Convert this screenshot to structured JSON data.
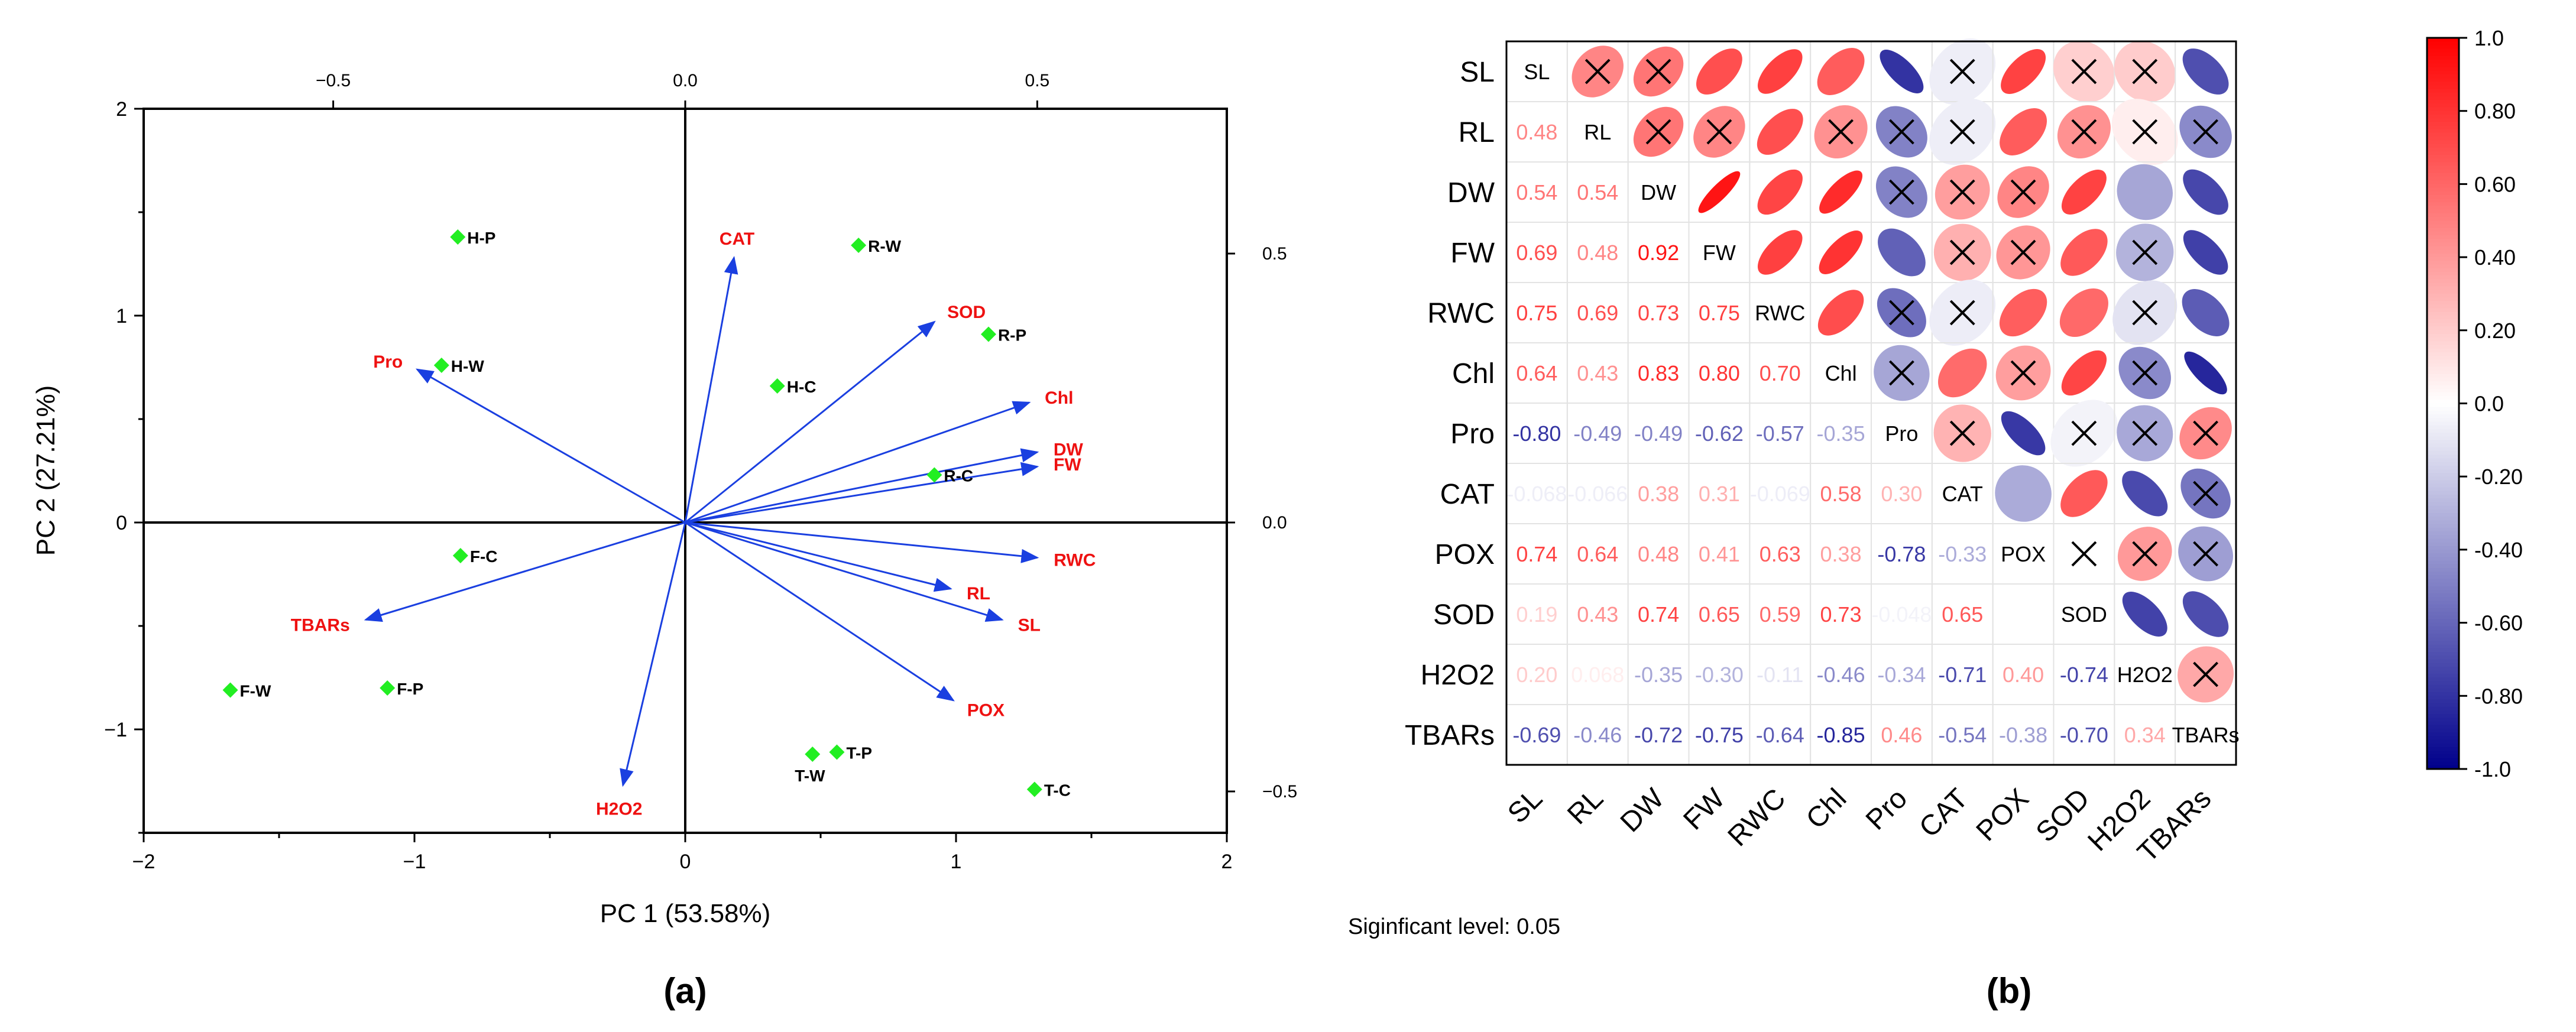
{
  "colors": {
    "arrow": "#1a3fe0",
    "score_marker": "#22ee22",
    "variable_label": "#ee1111",
    "positive": "#ff0000",
    "negative": "#00008b",
    "neutral": "#ffffff"
  },
  "chart_data": [
    {
      "panel": "(a)",
      "type": "scatter",
      "subtype": "pca-biplot",
      "title": "",
      "xlabel": "PC 1 (53.58%)",
      "ylabel": "PC 2 (27.21%)",
      "xlim": [
        -2,
        2
      ],
      "ylim": [
        -1.5,
        2
      ],
      "x_ticks": [
        -2,
        -1,
        0,
        1,
        2
      ],
      "y_ticks": [
        -1,
        0,
        1,
        2
      ],
      "tick_labels": {
        "bottom": [
          "−2",
          "−1",
          "0",
          "1",
          "2"
        ],
        "left": [
          "−1",
          "0",
          "1",
          "2"
        ],
        "top": [
          "−0.5",
          "0.0",
          "0.5"
        ],
        "right": [
          "−0.5",
          "0.0",
          "0.5"
        ]
      },
      "secondary_x_ticks": [
        -0.5,
        0.0,
        0.5
      ],
      "secondary_y_ticks": [
        -0.5,
        0.0,
        0.5
      ],
      "loading_scale": 2.6,
      "grid": false,
      "scores": [
        {
          "label": "H-P",
          "x": -0.84,
          "y": 1.38
        },
        {
          "label": "H-W",
          "x": -0.9,
          "y": 0.76
        },
        {
          "label": "H-C",
          "x": 0.34,
          "y": 0.66
        },
        {
          "label": "R-W",
          "x": 0.64,
          "y": 1.34
        },
        {
          "label": "R-P",
          "x": 1.12,
          "y": 0.91
        },
        {
          "label": "R-C",
          "x": 0.92,
          "y": 0.23
        },
        {
          "label": "F-C",
          "x": -0.83,
          "y": -0.16
        },
        {
          "label": "F-W",
          "x": -1.68,
          "y": -0.81
        },
        {
          "label": "F-P",
          "x": -1.1,
          "y": -0.8
        },
        {
          "label": "T-P",
          "x": 0.56,
          "y": -1.11
        },
        {
          "label": "T-W",
          "x": 0.47,
          "y": -1.12
        },
        {
          "label": "T-C",
          "x": 1.29,
          "y": -1.29
        }
      ],
      "loadings": [
        {
          "label": "CAT",
          "x": 0.18,
          "y": 1.28
        },
        {
          "label": "SOD",
          "x": 0.92,
          "y": 0.97
        },
        {
          "label": "Chl",
          "x": 1.27,
          "y": 0.58
        },
        {
          "label": "DW",
          "x": 1.3,
          "y": 0.34
        },
        {
          "label": "FW",
          "x": 1.3,
          "y": 0.27
        },
        {
          "label": "RWC",
          "x": 1.3,
          "y": -0.17
        },
        {
          "label": "RL",
          "x": 0.98,
          "y": -0.32
        },
        {
          "label": "SL",
          "x": 1.17,
          "y": -0.47
        },
        {
          "label": "POX",
          "x": 0.99,
          "y": -0.86
        },
        {
          "label": "H2O2",
          "x": -0.23,
          "y": -1.27
        },
        {
          "label": "TBARs",
          "x": -1.18,
          "y": -0.47
        },
        {
          "label": "Pro",
          "x": -0.99,
          "y": 0.74
        }
      ]
    },
    {
      "panel": "(b)",
      "type": "heatmap",
      "subtype": "correlation-matrix",
      "title": "",
      "variables": [
        "SL",
        "RL",
        "DW",
        "FW",
        "RWC",
        "Chl",
        "Pro",
        "CAT",
        "POX",
        "SOD",
        "H2O2",
        "TBARs"
      ],
      "cells": [
        [
          "SL",
          "0.480",
          "0.540",
          "0.690",
          "0.750",
          "0.640",
          "-0.800",
          "-0.068",
          "0.740",
          "0.190",
          "0.200",
          "-0.690"
        ],
        [
          "0.48",
          "RL",
          "0.540",
          "0.480",
          "0.690",
          "0.430",
          "-0.490",
          "-0.066",
          "0.640",
          "0.430",
          "0.068",
          "-0.460"
        ],
        [
          "0.54",
          "0.54",
          "DW",
          "0.920",
          "0.730",
          "0.830",
          "-0.490",
          "0.380",
          "0.480",
          "0.740",
          "-0.350",
          "-0.720"
        ],
        [
          "0.69",
          "0.48",
          "0.92",
          "FW",
          "0.750",
          "0.800",
          "-0.620",
          "0.310",
          "0.410",
          "0.650",
          "-0.300",
          "-0.750"
        ],
        [
          "0.75",
          "0.69",
          "0.73",
          "0.75",
          "RWC",
          "0.700",
          "-0.570",
          "-0.069",
          "0.630",
          "0.590",
          "-0.110",
          "-0.640"
        ],
        [
          "0.64",
          "0.43",
          "0.83",
          "0.80",
          "0.70",
          "Chl",
          "-0.350",
          "0.580",
          "0.380",
          "0.730",
          "-0.460",
          "-0.850"
        ],
        [
          "-0.80",
          "-0.49",
          "-0.49",
          "-0.62",
          "-0.57",
          "-0.35",
          "Pro",
          "0.300",
          "-0.780",
          "-0.048",
          "-0.340",
          "0.460"
        ],
        [
          "-0.068",
          "-0.066",
          "0.38",
          "0.31",
          "-0.069",
          "0.58",
          "0.30",
          "CAT",
          "-0.330",
          "0.650",
          "-0.710",
          "-0.540"
        ],
        [
          "0.74",
          "0.64",
          "0.48",
          "0.41",
          "0.63",
          "0.38",
          "-0.78",
          "-0.33",
          "POX",
          "0.000",
          "0.400",
          "-0.380"
        ],
        [
          "0.19",
          "0.43",
          "0.74",
          "0.65",
          "0.59",
          "0.73",
          "-0.048",
          "0.65",
          "",
          "SOD",
          "-0.740",
          "-0.700"
        ],
        [
          "0.20",
          "0.068",
          "-0.35",
          "-0.30",
          "-0.11",
          "-0.46",
          "-0.34",
          "-0.71",
          "0.40",
          "-0.74",
          "H2O2",
          "0.340"
        ],
        [
          "-0.69",
          "-0.46",
          "-0.72",
          "-0.75",
          "-0.64",
          "-0.85",
          "0.46",
          "-0.54",
          "-0.38",
          "-0.70",
          "0.34",
          "TBARs"
        ]
      ],
      "not_significant": [
        [
          0,
          1
        ],
        [
          0,
          2
        ],
        [
          0,
          7
        ],
        [
          0,
          9
        ],
        [
          0,
          10
        ],
        [
          1,
          2
        ],
        [
          1,
          3
        ],
        [
          1,
          5
        ],
        [
          1,
          6
        ],
        [
          1,
          7
        ],
        [
          1,
          9
        ],
        [
          1,
          10
        ],
        [
          1,
          11
        ],
        [
          2,
          6
        ],
        [
          2,
          7
        ],
        [
          2,
          8
        ],
        [
          3,
          7
        ],
        [
          3,
          8
        ],
        [
          3,
          10
        ],
        [
          4,
          6
        ],
        [
          4,
          7
        ],
        [
          4,
          10
        ],
        [
          5,
          6
        ],
        [
          5,
          8
        ],
        [
          5,
          10
        ],
        [
          6,
          7
        ],
        [
          6,
          9
        ],
        [
          6,
          10
        ],
        [
          6,
          11
        ],
        [
          7,
          11
        ],
        [
          8,
          9
        ],
        [
          8,
          10
        ],
        [
          8,
          11
        ],
        [
          10,
          11
        ]
      ],
      "colorbar": {
        "range": [
          -1.0,
          1.0
        ],
        "ticks": [
          "1.0",
          "0.80",
          "0.60",
          "0.40",
          "0.20",
          "0.0",
          "-0.20",
          "-0.40",
          "-0.60",
          "-0.80",
          "-1.0"
        ]
      },
      "note": "Siginficant level: 0.05"
    }
  ]
}
